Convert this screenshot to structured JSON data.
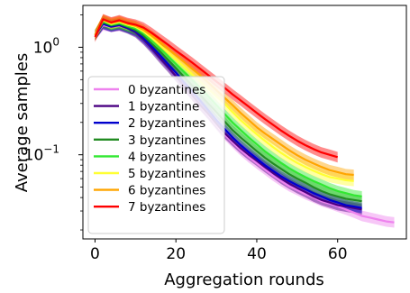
{
  "chart_data": {
    "type": "line",
    "xlabel": "Aggregation rounds",
    "ylabel": "Average samples",
    "xlim": [
      -3,
      77
    ],
    "ylim": [
      0.0165,
      2.45
    ],
    "yscale": "log",
    "xticks": [
      0,
      20,
      40,
      60
    ],
    "xtick_labels": [
      "0",
      "20",
      "40",
      "60"
    ],
    "yticks": [
      1,
      0.1
    ],
    "ytick_labels": [
      "10^0",
      "10^-1"
    ],
    "legend_position": "center-left",
    "grid": false,
    "series": [
      {
        "name": "0 byzantines",
        "color": "#ee82ee",
        "x": [
          0,
          2,
          4,
          6,
          8,
          10,
          12,
          14,
          16,
          18,
          20,
          22,
          24,
          26,
          28,
          30,
          32,
          34,
          36,
          38,
          40,
          42,
          44,
          46,
          48,
          50,
          52,
          54,
          56,
          58,
          60,
          62,
          64,
          66,
          68,
          70,
          72,
          74
        ],
        "y": [
          1.3,
          1.6,
          1.55,
          1.58,
          1.52,
          1.4,
          1.2,
          1.0,
          0.82,
          0.68,
          0.55,
          0.44,
          0.36,
          0.29,
          0.235,
          0.19,
          0.155,
          0.13,
          0.11,
          0.095,
          0.083,
          0.073,
          0.064,
          0.057,
          0.051,
          0.047,
          0.043,
          0.04,
          0.037,
          0.035,
          0.033,
          0.031,
          0.029,
          0.027,
          0.026,
          0.025,
          0.024,
          0.0235
        ]
      },
      {
        "name": "1 byzantine",
        "color": "#4b0082",
        "x": [
          0,
          2,
          4,
          6,
          8,
          10,
          12,
          14,
          16,
          18,
          20,
          22,
          24,
          26,
          28,
          30,
          32,
          34,
          36,
          38,
          40,
          42,
          44,
          46,
          48,
          50,
          52,
          54,
          56,
          58,
          60,
          62,
          64,
          66
        ],
        "y": [
          1.3,
          1.65,
          1.55,
          1.6,
          1.5,
          1.38,
          1.18,
          0.98,
          0.8,
          0.66,
          0.54,
          0.44,
          0.36,
          0.29,
          0.24,
          0.195,
          0.16,
          0.135,
          0.115,
          0.1,
          0.088,
          0.077,
          0.068,
          0.06,
          0.054,
          0.049,
          0.045,
          0.041,
          0.038,
          0.036,
          0.034,
          0.033,
          0.032,
          0.031
        ]
      },
      {
        "name": "2 byzantines",
        "color": "#0000cd",
        "x": [
          0,
          2,
          4,
          6,
          8,
          10,
          12,
          14,
          16,
          18,
          20,
          22,
          24,
          26,
          28,
          30,
          32,
          34,
          36,
          38,
          40,
          42,
          44,
          46,
          48,
          50,
          52,
          54,
          56,
          58,
          60,
          62,
          64,
          66
        ],
        "y": [
          1.3,
          1.65,
          1.56,
          1.62,
          1.52,
          1.42,
          1.22,
          1.02,
          0.85,
          0.7,
          0.58,
          0.47,
          0.39,
          0.32,
          0.26,
          0.21,
          0.175,
          0.145,
          0.123,
          0.106,
          0.092,
          0.08,
          0.071,
          0.063,
          0.057,
          0.052,
          0.048,
          0.044,
          0.041,
          0.038,
          0.036,
          0.034,
          0.033,
          0.032
        ]
      },
      {
        "name": "3 byzantines",
        "color": "#228b22",
        "x": [
          0,
          2,
          4,
          6,
          8,
          10,
          12,
          14,
          16,
          18,
          20,
          22,
          24,
          26,
          28,
          30,
          32,
          34,
          36,
          38,
          40,
          42,
          44,
          46,
          48,
          50,
          52,
          54,
          56,
          58,
          60,
          62,
          64,
          66
        ],
        "y": [
          1.3,
          1.7,
          1.6,
          1.65,
          1.55,
          1.45,
          1.28,
          1.08,
          0.92,
          0.77,
          0.64,
          0.53,
          0.44,
          0.36,
          0.3,
          0.25,
          0.205,
          0.17,
          0.145,
          0.125,
          0.108,
          0.094,
          0.083,
          0.074,
          0.066,
          0.06,
          0.055,
          0.05,
          0.046,
          0.043,
          0.041,
          0.039,
          0.038,
          0.037
        ]
      },
      {
        "name": "4 byzantines",
        "color": "#32e832",
        "x": [
          0,
          2,
          4,
          6,
          8,
          10,
          12,
          14,
          16,
          18,
          20,
          22,
          24,
          26,
          28,
          30,
          32,
          34,
          36,
          38,
          40,
          42,
          44,
          46,
          48,
          50,
          52,
          54,
          56,
          58,
          60,
          62,
          64,
          66
        ],
        "y": [
          1.3,
          1.75,
          1.62,
          1.68,
          1.58,
          1.5,
          1.35,
          1.15,
          0.98,
          0.83,
          0.7,
          0.59,
          0.5,
          0.42,
          0.35,
          0.29,
          0.24,
          0.2,
          0.17,
          0.145,
          0.125,
          0.108,
          0.095,
          0.084,
          0.075,
          0.068,
          0.062,
          0.057,
          0.053,
          0.049,
          0.046,
          0.044,
          0.042,
          0.041
        ]
      },
      {
        "name": "5 byzantines",
        "color": "#ffff33",
        "x": [
          0,
          2,
          4,
          6,
          8,
          10,
          12,
          14,
          16,
          18,
          20,
          22,
          24,
          26,
          28,
          30,
          32,
          34,
          36,
          38,
          40,
          42,
          44,
          46,
          48,
          50,
          52,
          54,
          56,
          58,
          60,
          62,
          64
        ],
        "y": [
          1.3,
          1.78,
          1.65,
          1.72,
          1.62,
          1.55,
          1.4,
          1.22,
          1.05,
          0.9,
          0.77,
          0.66,
          0.56,
          0.48,
          0.41,
          0.35,
          0.3,
          0.25,
          0.21,
          0.18,
          0.155,
          0.135,
          0.118,
          0.104,
          0.093,
          0.084,
          0.077,
          0.071,
          0.066,
          0.062,
          0.06,
          0.058,
          0.057
        ]
      },
      {
        "name": "6 byzantines",
        "color": "#ffa500",
        "x": [
          0,
          2,
          4,
          6,
          8,
          10,
          12,
          14,
          16,
          18,
          20,
          22,
          24,
          26,
          28,
          30,
          32,
          34,
          36,
          38,
          40,
          42,
          44,
          46,
          48,
          50,
          52,
          54,
          56,
          58,
          60,
          62,
          64
        ],
        "y": [
          1.3,
          1.8,
          1.68,
          1.75,
          1.65,
          1.58,
          1.45,
          1.28,
          1.12,
          0.97,
          0.84,
          0.73,
          0.63,
          0.55,
          0.47,
          0.4,
          0.34,
          0.29,
          0.245,
          0.21,
          0.18,
          0.158,
          0.14,
          0.124,
          0.11,
          0.099,
          0.09,
          0.083,
          0.077,
          0.072,
          0.069,
          0.066,
          0.065
        ]
      },
      {
        "name": "7 byzantines",
        "color": "#ff0000",
        "x": [
          0,
          2,
          4,
          6,
          8,
          10,
          12,
          14,
          16,
          18,
          20,
          22,
          24,
          26,
          28,
          30,
          32,
          34,
          36,
          38,
          40,
          42,
          44,
          46,
          48,
          50,
          52,
          54,
          56,
          58,
          60
        ],
        "y": [
          1.25,
          1.82,
          1.7,
          1.78,
          1.68,
          1.62,
          1.52,
          1.36,
          1.2,
          1.06,
          0.93,
          0.82,
          0.72,
          0.63,
          0.55,
          0.48,
          0.42,
          0.365,
          0.32,
          0.28,
          0.245,
          0.215,
          0.19,
          0.168,
          0.15,
          0.135,
          0.123,
          0.113,
          0.105,
          0.1,
          0.095
        ]
      }
    ]
  }
}
